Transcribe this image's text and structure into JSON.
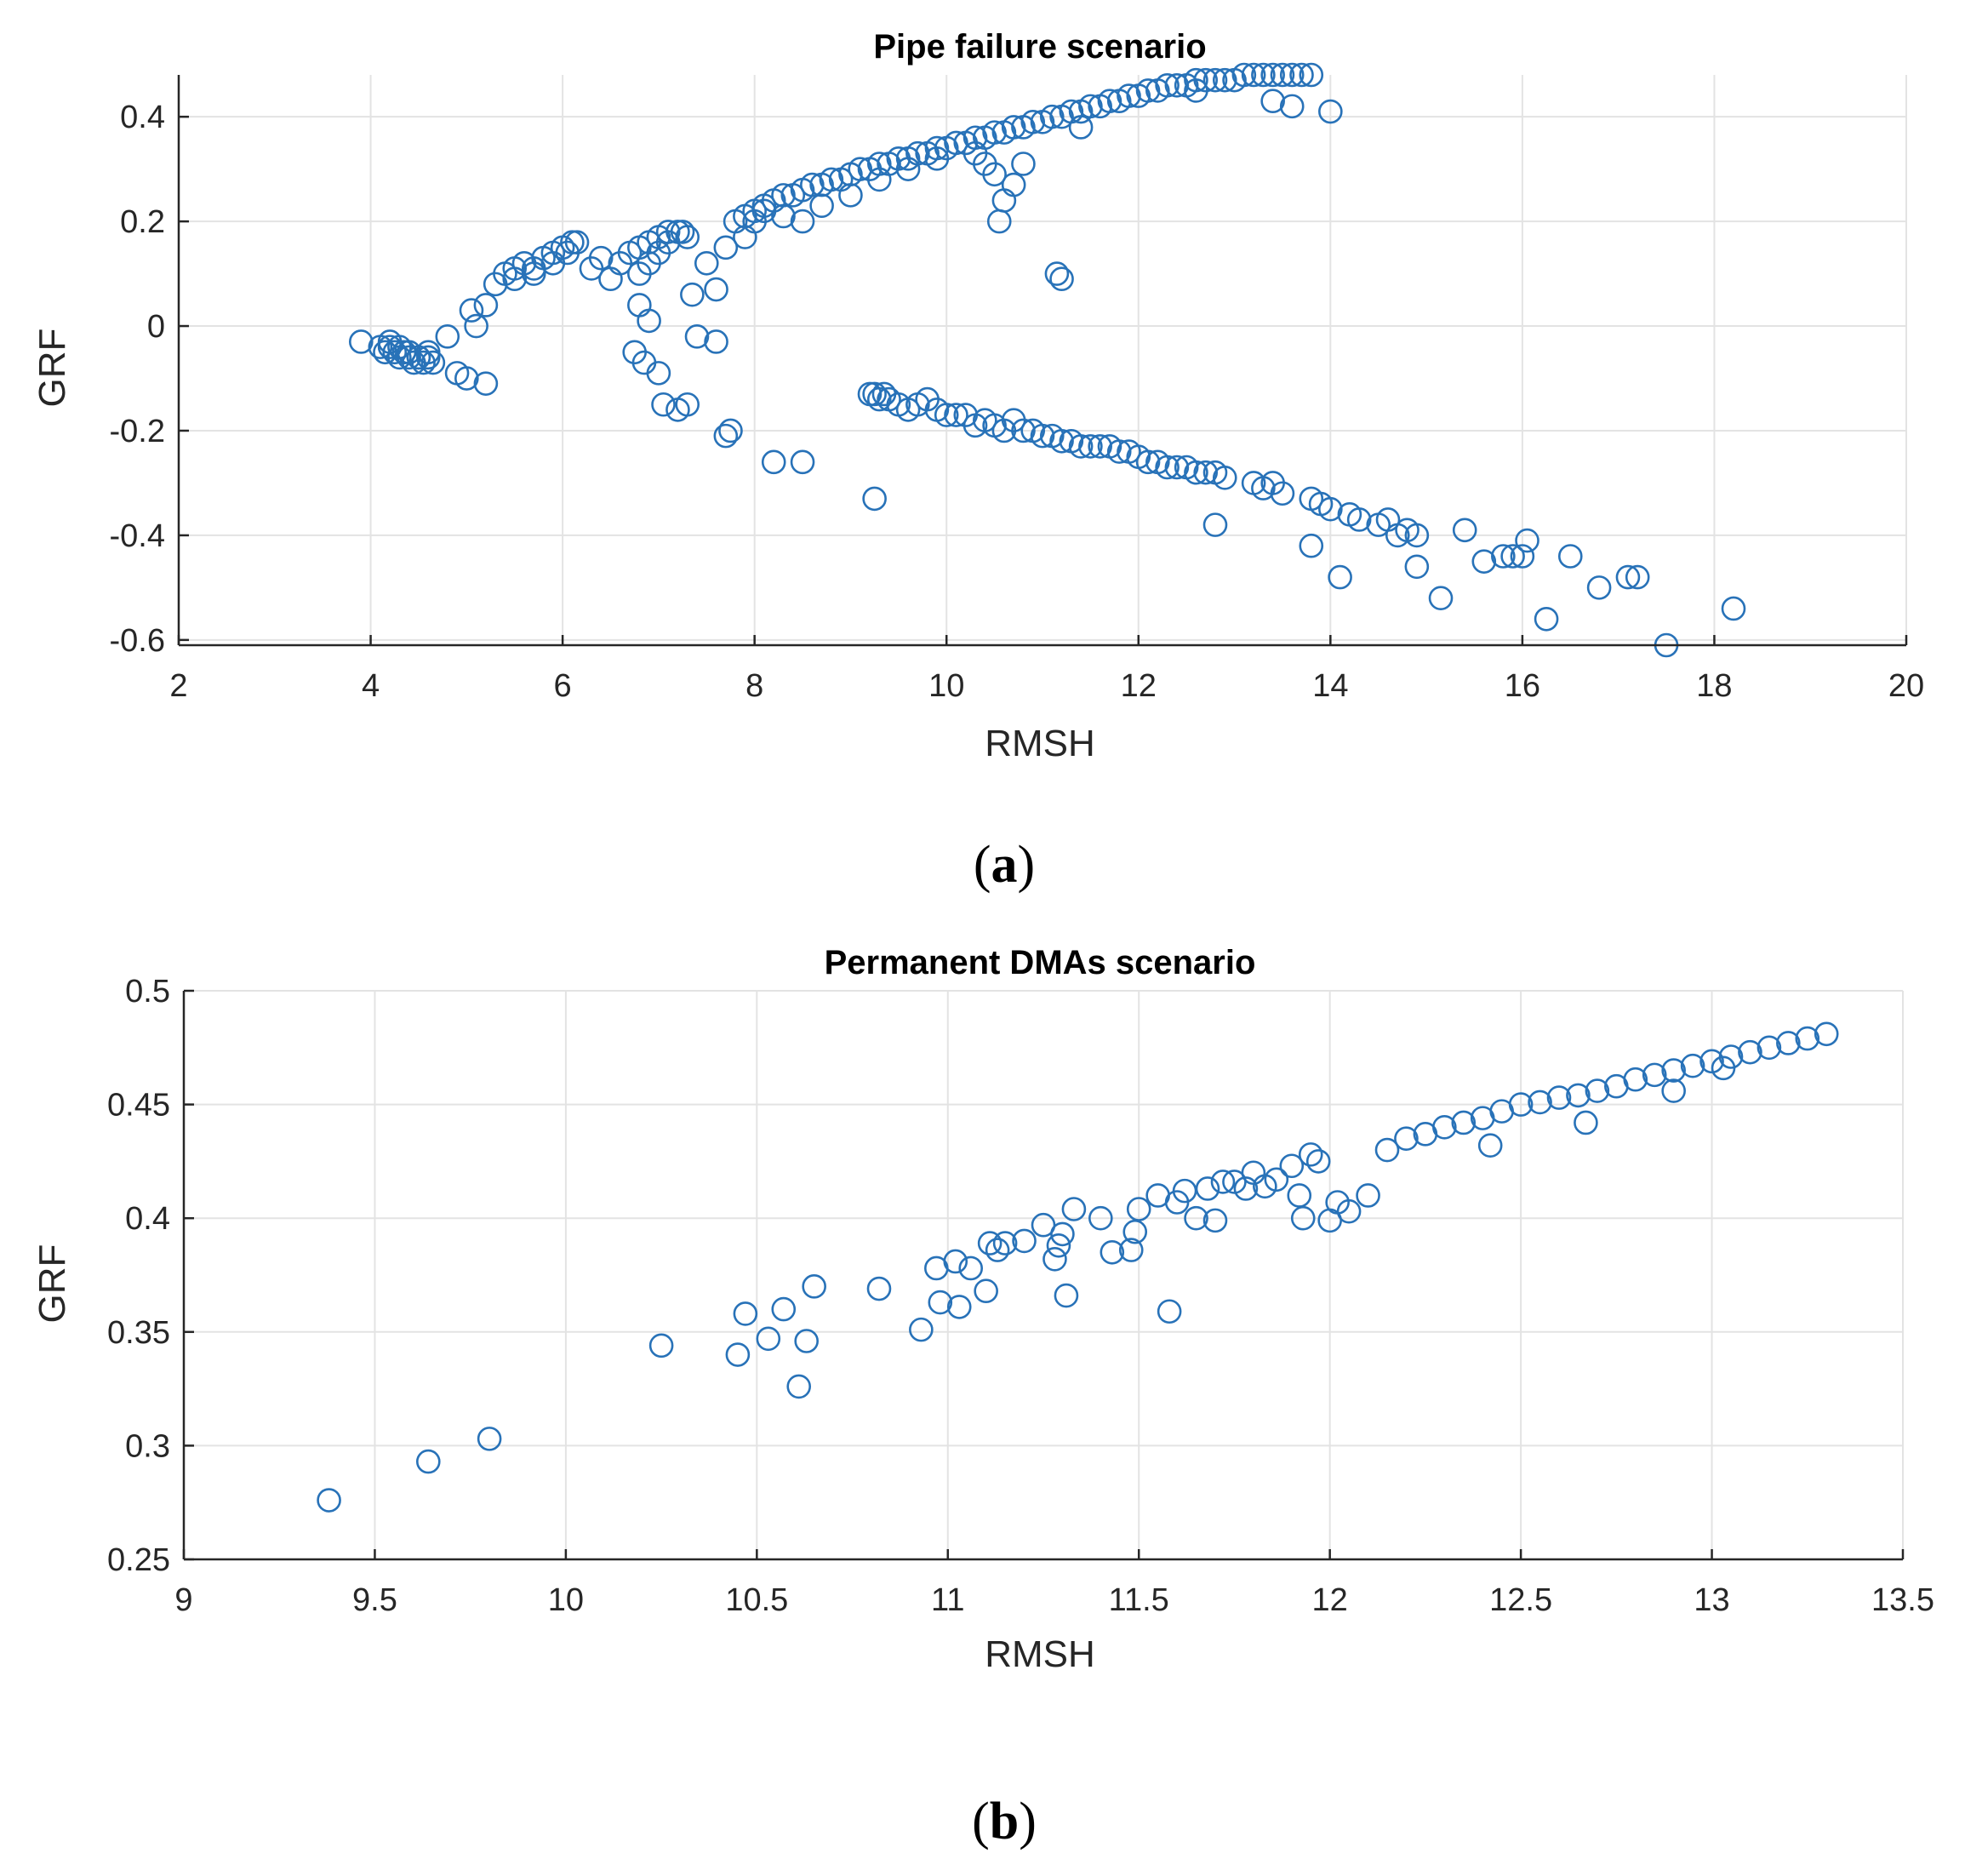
{
  "figure_labels": {
    "a": "a",
    "b": "b"
  },
  "colors": {
    "marker": "#2872b8",
    "axis": "#262626",
    "grid": "#e3e3e3"
  },
  "chart_data": [
    {
      "id": "a",
      "type": "scatter",
      "title": "Pipe failure scenario",
      "xlabel": "RMSH",
      "ylabel": "GRF",
      "xlim": [
        2,
        20
      ],
      "ylim": [
        -0.61,
        0.48
      ],
      "xticks": [
        2,
        4,
        6,
        8,
        10,
        12,
        14,
        16,
        18,
        20
      ],
      "xtick_labels": [
        "2",
        "4",
        "6",
        "8",
        "10",
        "12",
        "14",
        "16",
        "18",
        "20"
      ],
      "yticks": [
        -0.6,
        -0.4,
        -0.2,
        0,
        0.2,
        0.4
      ],
      "ytick_labels": [
        "-0.6",
        "-0.4",
        "-0.2",
        "0",
        "0.2",
        "0.4"
      ],
      "grid": true,
      "marker": "open-circle",
      "x": [
        3.9,
        4.1,
        4.15,
        4.2,
        4.25,
        4.3,
        4.35,
        4.4,
        4.45,
        4.5,
        4.55,
        4.6,
        4.65,
        4.2,
        4.3,
        4.4,
        4.5,
        4.6,
        4.8,
        4.9,
        5.0,
        5.1,
        5.2,
        5.05,
        5.2,
        5.3,
        5.4,
        5.5,
        5.6,
        5.7,
        5.8,
        5.9,
        6.0,
        6.1,
        6.15,
        5.5,
        5.7,
        5.9,
        6.05,
        6.3,
        6.4,
        6.5,
        6.6,
        6.7,
        6.8,
        6.9,
        7.0,
        7.1,
        7.2,
        7.3,
        6.8,
        6.9,
        7.0,
        7.1,
        7.25,
        6.75,
        6.85,
        6.8,
        6.9,
        7.0,
        7.05,
        7.2,
        7.3,
        7.35,
        7.4,
        7.5,
        7.6,
        7.7,
        7.75,
        7.6,
        7.7,
        7.8,
        7.9,
        8.0,
        8.1,
        8.2,
        8.3,
        8.4,
        8.5,
        8.6,
        8.7,
        8.8,
        8.9,
        9.0,
        9.1,
        9.2,
        9.3,
        9.4,
        9.5,
        9.6,
        9.7,
        9.8,
        9.9,
        10.0,
        10.1,
        10.2,
        10.3,
        10.4,
        10.5,
        10.6,
        10.7,
        10.8,
        10.9,
        11.0,
        11.1,
        11.2,
        11.3,
        11.4,
        11.5,
        11.6,
        11.7,
        11.8,
        11.9,
        12.0,
        12.1,
        12.2,
        12.3,
        12.4,
        12.5,
        12.6,
        12.7,
        12.8,
        12.9,
        13.0,
        13.1,
        13.2,
        13.3,
        13.4,
        13.5,
        13.6,
        13.7,
        13.8,
        7.9,
        8.0,
        8.1,
        8.3,
        8.5,
        8.7,
        9.0,
        9.3,
        9.6,
        9.9,
        10.3,
        10.4,
        10.5,
        10.55,
        10.6,
        10.7,
        10.8,
        11.15,
        11.2,
        11.4,
        12.6,
        13.4,
        13.6,
        14.0,
        8.2,
        8.5,
        9.2,
        9.25,
        9.3,
        9.35,
        9.4,
        9.5,
        9.6,
        9.7,
        9.8,
        9.9,
        10.0,
        10.1,
        10.2,
        10.3,
        10.4,
        10.5,
        10.6,
        10.7,
        10.8,
        10.9,
        11.0,
        11.1,
        11.2,
        11.3,
        11.4,
        11.5,
        11.6,
        11.7,
        11.8,
        11.9,
        12.0,
        12.1,
        12.2,
        12.3,
        12.4,
        12.5,
        12.6,
        12.7,
        12.8,
        12.9,
        13.2,
        13.3,
        13.4,
        13.5,
        13.8,
        13.9,
        14.0,
        14.2,
        14.3,
        14.5,
        14.6,
        14.7,
        14.8,
        14.9,
        15.4,
        15.6,
        15.8,
        15.9,
        16.0,
        16.05,
        12.8,
        13.8,
        14.1,
        14.9,
        15.15,
        16.25,
        16.5,
        16.8,
        17.1,
        17.2,
        17.5,
        18.2,
        9.25
      ],
      "y": [
        -0.03,
        -0.04,
        -0.05,
        -0.04,
        -0.05,
        -0.06,
        -0.05,
        -0.06,
        -0.07,
        -0.06,
        -0.07,
        -0.06,
        -0.07,
        -0.03,
        -0.04,
        -0.05,
        -0.06,
        -0.05,
        -0.02,
        -0.09,
        -0.1,
        0.0,
        -0.11,
        0.03,
        0.04,
        0.08,
        0.1,
        0.11,
        0.12,
        0.11,
        0.13,
        0.14,
        0.15,
        0.16,
        0.16,
        0.09,
        0.1,
        0.12,
        0.14,
        0.11,
        0.13,
        0.09,
        0.12,
        0.14,
        0.15,
        0.16,
        0.17,
        0.18,
        0.18,
        0.17,
        0.1,
        0.12,
        0.14,
        0.16,
        0.18,
        -0.05,
        -0.07,
        0.04,
        0.01,
        -0.09,
        -0.15,
        -0.16,
        -0.15,
        0.06,
        -0.02,
        0.12,
        -0.03,
        -0.21,
        -0.2,
        0.07,
        0.15,
        0.2,
        0.21,
        0.22,
        0.23,
        0.24,
        0.25,
        0.25,
        0.26,
        0.27,
        0.27,
        0.28,
        0.28,
        0.29,
        0.3,
        0.3,
        0.31,
        0.31,
        0.32,
        0.32,
        0.33,
        0.33,
        0.34,
        0.34,
        0.35,
        0.35,
        0.36,
        0.36,
        0.37,
        0.37,
        0.38,
        0.38,
        0.39,
        0.39,
        0.4,
        0.4,
        0.41,
        0.41,
        0.42,
        0.42,
        0.43,
        0.43,
        0.44,
        0.44,
        0.45,
        0.45,
        0.46,
        0.46,
        0.46,
        0.47,
        0.47,
        0.47,
        0.47,
        0.47,
        0.48,
        0.48,
        0.48,
        0.48,
        0.48,
        0.48,
        0.48,
        0.48,
        0.17,
        0.2,
        0.22,
        0.21,
        0.2,
        0.23,
        0.25,
        0.28,
        0.3,
        0.32,
        0.33,
        0.31,
        0.29,
        0.2,
        0.24,
        0.27,
        0.31,
        0.1,
        0.09,
        0.38,
        0.45,
        0.43,
        0.42,
        0.41,
        -0.26,
        -0.26,
        -0.13,
        -0.13,
        -0.14,
        -0.13,
        -0.14,
        -0.15,
        -0.16,
        -0.15,
        -0.14,
        -0.16,
        -0.17,
        -0.17,
        -0.17,
        -0.19,
        -0.18,
        -0.19,
        -0.2,
        -0.18,
        -0.2,
        -0.2,
        -0.21,
        -0.21,
        -0.22,
        -0.22,
        -0.23,
        -0.23,
        -0.23,
        -0.23,
        -0.24,
        -0.24,
        -0.25,
        -0.26,
        -0.26,
        -0.27,
        -0.27,
        -0.27,
        -0.28,
        -0.28,
        -0.28,
        -0.29,
        -0.3,
        -0.31,
        -0.3,
        -0.32,
        -0.33,
        -0.34,
        -0.35,
        -0.36,
        -0.37,
        -0.38,
        -0.37,
        -0.4,
        -0.39,
        -0.4,
        -0.39,
        -0.45,
        -0.44,
        -0.44,
        -0.44,
        -0.41,
        -0.38,
        -0.42,
        -0.48,
        -0.46,
        -0.52,
        -0.56,
        -0.44,
        -0.5,
        -0.48,
        -0.48,
        -0.61,
        -0.54,
        -0.33
      ]
    },
    {
      "id": "b",
      "type": "scatter",
      "title": "Permanent DMAs scenario",
      "xlabel": "RMSH",
      "ylabel": "GRF",
      "xlim": [
        9,
        13.5
      ],
      "ylim": [
        0.25,
        0.5
      ],
      "xticks": [
        9,
        9.5,
        10,
        10.5,
        11,
        11.5,
        12,
        12.5,
        13,
        13.5
      ],
      "xtick_labels": [
        "9",
        "9.5",
        "10",
        "10.5",
        "11",
        "11.5",
        "12",
        "12.5",
        "13",
        "13.5"
      ],
      "yticks": [
        0.25,
        0.3,
        0.35,
        0.4,
        0.45,
        0.5
      ],
      "ytick_labels": [
        "0.25",
        "0.3",
        "0.35",
        "0.4",
        "0.45",
        "0.5"
      ],
      "grid": true,
      "marker": "open-circle",
      "x": [
        9.38,
        9.64,
        9.8,
        10.25,
        10.45,
        10.47,
        10.53,
        10.57,
        10.61,
        10.63,
        10.65,
        10.82,
        10.93,
        10.97,
        10.98,
        11.02,
        11.03,
        11.06,
        11.1,
        11.11,
        11.13,
        11.15,
        11.2,
        11.25,
        11.28,
        11.29,
        11.3,
        11.31,
        11.33,
        11.4,
        11.43,
        11.48,
        11.49,
        11.5,
        11.55,
        11.58,
        11.6,
        11.62,
        11.65,
        11.68,
        11.7,
        11.72,
        11.75,
        11.78,
        11.8,
        11.83,
        11.86,
        11.9,
        11.92,
        11.93,
        11.95,
        11.97,
        12.0,
        12.02,
        12.05,
        12.1,
        12.15,
        12.2,
        12.25,
        12.3,
        12.35,
        12.4,
        12.45,
        12.5,
        12.55,
        12.6,
        12.65,
        12.7,
        12.75,
        12.8,
        12.85,
        12.9,
        12.95,
        13.0,
        13.05,
        13.1,
        13.15,
        13.2,
        13.25,
        13.3,
        12.42,
        12.67,
        12.9,
        13.03
      ],
      "y": [
        0.276,
        0.293,
        0.303,
        0.344,
        0.34,
        0.358,
        0.347,
        0.36,
        0.326,
        0.346,
        0.37,
        0.369,
        0.351,
        0.378,
        0.363,
        0.381,
        0.361,
        0.378,
        0.368,
        0.389,
        0.386,
        0.389,
        0.39,
        0.397,
        0.382,
        0.388,
        0.393,
        0.366,
        0.404,
        0.4,
        0.385,
        0.386,
        0.394,
        0.404,
        0.41,
        0.359,
        0.407,
        0.412,
        0.4,
        0.413,
        0.399,
        0.416,
        0.416,
        0.413,
        0.42,
        0.414,
        0.417,
        0.423,
        0.41,
        0.4,
        0.428,
        0.425,
        0.399,
        0.407,
        0.403,
        0.41,
        0.43,
        0.435,
        0.437,
        0.44,
        0.442,
        0.444,
        0.447,
        0.45,
        0.451,
        0.453,
        0.454,
        0.456,
        0.458,
        0.461,
        0.463,
        0.465,
        0.467,
        0.469,
        0.471,
        0.473,
        0.475,
        0.477,
        0.479,
        0.481,
        0.432,
        0.442,
        0.456,
        0.466
      ]
    }
  ]
}
